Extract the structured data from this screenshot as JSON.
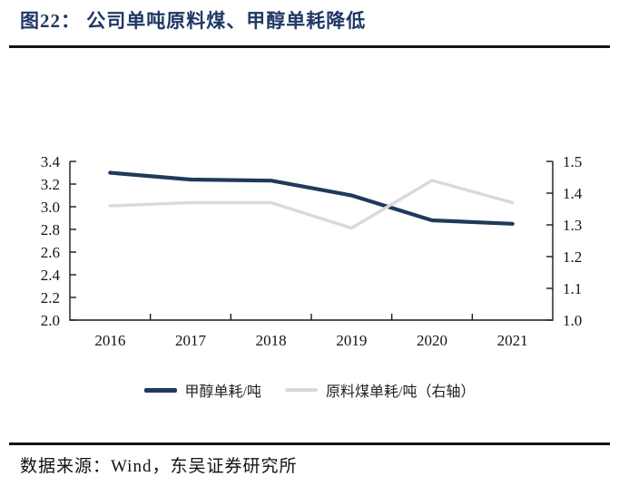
{
  "figure": {
    "title": "图22：  公司单吨原料煤、甲醇单耗降低"
  },
  "source": {
    "text": "数据来源：Wind，东吴证券研究所"
  },
  "colors": {
    "title_navy": "#1f3864",
    "series_navy": "#20395c",
    "series_gray": "#d9d9d9",
    "axis": "#1a1a1a",
    "rule": "#141414"
  },
  "chart_data": {
    "type": "line",
    "title": "公司单吨原料煤、甲醇单耗降低",
    "categories": [
      "2016",
      "2017",
      "2018",
      "2019",
      "2020",
      "2021"
    ],
    "series": [
      {
        "name": "甲醇单耗/吨",
        "axis": "left",
        "color": "#20395c",
        "values": [
          3.3,
          3.24,
          3.23,
          3.1,
          2.88,
          2.85
        ]
      },
      {
        "name": "原料煤单耗/吨（右轴）",
        "axis": "right",
        "color": "#d9d9d9",
        "values": [
          1.36,
          1.37,
          1.37,
          1.29,
          1.44,
          1.37
        ]
      }
    ],
    "left_axis": {
      "min": 2.0,
      "max": 3.4,
      "step": 0.2,
      "tick_labels": [
        "2.0",
        "2.2",
        "2.4",
        "2.6",
        "2.8",
        "3.0",
        "3.2",
        "3.4"
      ]
    },
    "right_axis": {
      "min": 1.0,
      "max": 1.5,
      "step": 0.1,
      "tick_labels": [
        "1.0",
        "1.1",
        "1.2",
        "1.3",
        "1.4",
        "1.5"
      ]
    },
    "grid": false,
    "legend_position": "bottom"
  }
}
